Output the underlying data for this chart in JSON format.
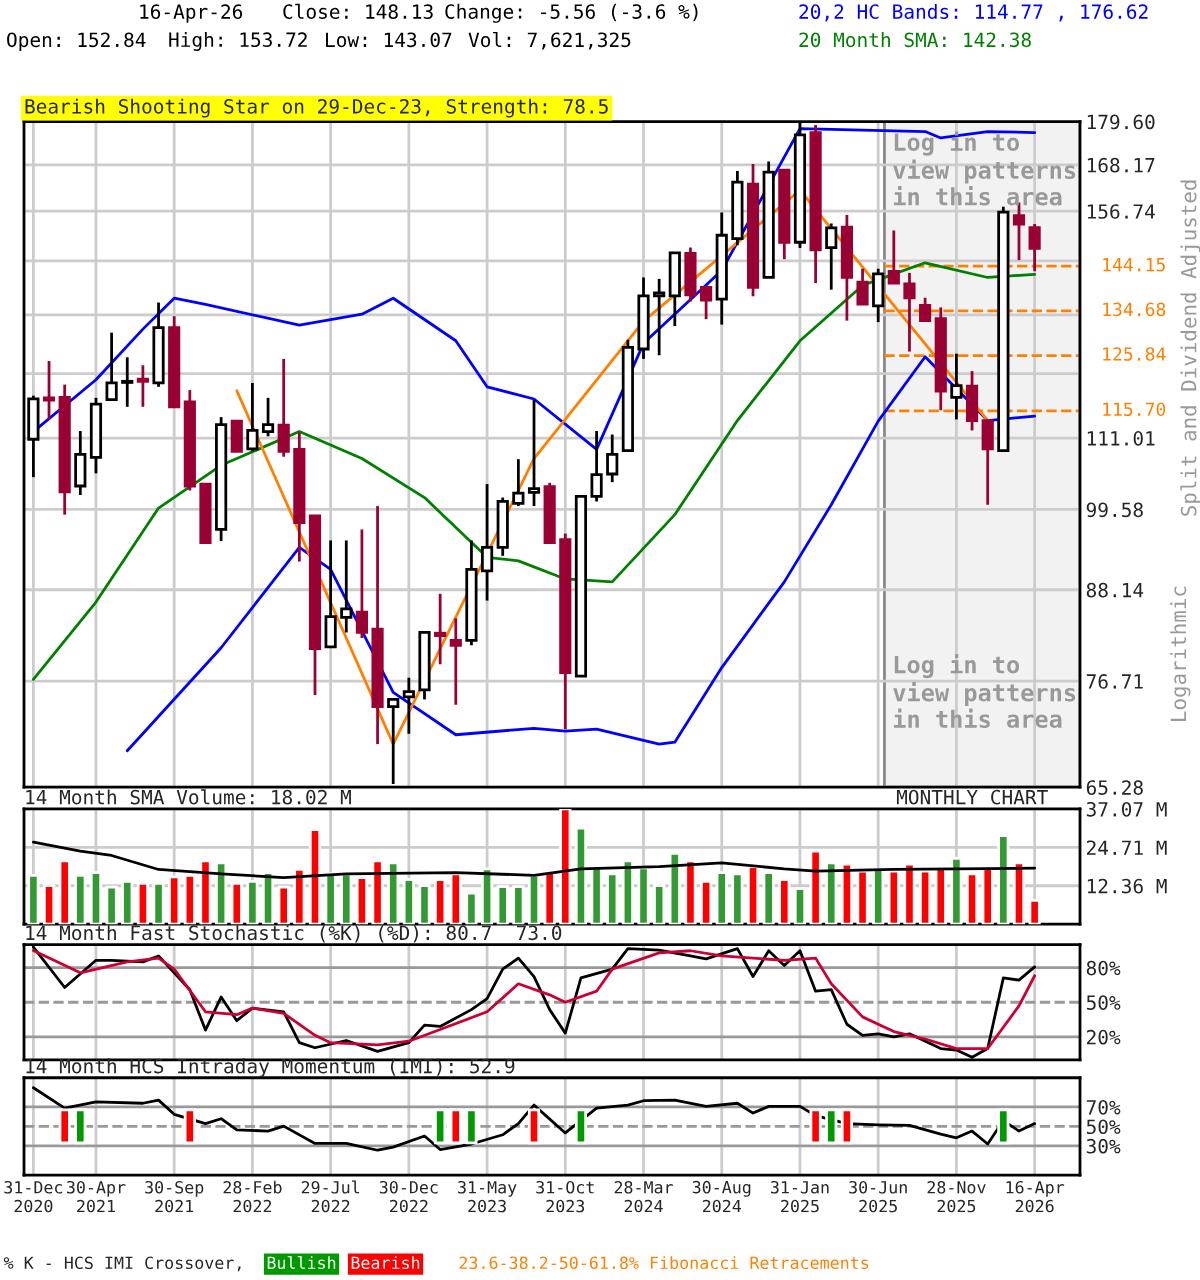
{
  "chart_data": [
    {
      "type": "candlestick",
      "title": "Bearish Shooting Star on 29-Dec-23, Strength: 78.5",
      "ylabel": "Split and Dividend Adjusted",
      "x": [
        "2020-12",
        "2021-01",
        "2021-02",
        "2021-03",
        "2021-04",
        "2021-05",
        "2021-06",
        "2021-07",
        "2021-08",
        "2021-09",
        "2021-10",
        "2021-11",
        "2021-12",
        "2022-01",
        "2022-02",
        "2022-03",
        "2022-04",
        "2022-05",
        "2022-06",
        "2022-07",
        "2022-08",
        "2022-09",
        "2022-10",
        "2022-11",
        "2022-12",
        "2023-01",
        "2023-02",
        "2023-03",
        "2023-04",
        "2023-05",
        "2023-06",
        "2023-07",
        "2023-08",
        "2023-09",
        "2023-10",
        "2023-11",
        "2023-12",
        "2024-01",
        "2024-02",
        "2024-03",
        "2024-04",
        "2024-05",
        "2024-06",
        "2024-07",
        "2024-08",
        "2024-09",
        "2024-10",
        "2024-11",
        "2024-12",
        "2025-01",
        "2025-02",
        "2025-03",
        "2025-04",
        "2025-05",
        "2025-06",
        "2025-07",
        "2025-08",
        "2025-09",
        "2025-10",
        "2025-11",
        "2025-12",
        "2026-01",
        "2026-02",
        "2026-03",
        "2026-04"
      ],
      "ohlc": [
        [
          110.8,
          118.4,
          104.6,
          117.8
        ],
        [
          118.0,
          124.8,
          114.2,
          117.6
        ],
        [
          118.1,
          120.4,
          98.8,
          102.3
        ],
        [
          103.2,
          112.2,
          101.8,
          108.3
        ],
        [
          107.8,
          118.0,
          105.2,
          116.9
        ],
        [
          117.7,
          130.3,
          117.7,
          120.7
        ],
        [
          120.8,
          125.5,
          116.4,
          121.0
        ],
        [
          121.4,
          124.0,
          116.4,
          121.0
        ],
        [
          120.7,
          136.4,
          120.0,
          131.3
        ],
        [
          131.3,
          133.6,
          116.4,
          116.4
        ],
        [
          117.3,
          119.4,
          102.5,
          103.2
        ],
        [
          103.5,
          103.5,
          94.5,
          94.7
        ],
        [
          96.6,
          114.6,
          94.9,
          113.3
        ],
        [
          113.9,
          113.9,
          108.8,
          108.8
        ],
        [
          109.2,
          120.7,
          108.8,
          112.3
        ],
        [
          112.1,
          118.0,
          111.3,
          113.3
        ],
        [
          113.2,
          125.2,
          107.9,
          108.8
        ],
        [
          109.1,
          111.9,
          92.0,
          97.6
        ],
        [
          98.6,
          98.6,
          75.1,
          80.6
        ],
        [
          80.8,
          95.0,
          80.8,
          84.6
        ],
        [
          84.5,
          95.0,
          82.6,
          85.6
        ],
        [
          85.2,
          96.6,
          81.9,
          82.6
        ],
        [
          83.0,
          100.1,
          69.7,
          73.8
        ],
        [
          73.8,
          74.6,
          65.6,
          74.6
        ],
        [
          74.9,
          77.1,
          70.8,
          75.5
        ],
        [
          75.7,
          82.6,
          74.6,
          82.6
        ],
        [
          82.5,
          87.6,
          78.7,
          82.2
        ],
        [
          81.6,
          84.4,
          74.0,
          81.0
        ],
        [
          81.6,
          95.0,
          81.0,
          90.9
        ],
        [
          90.7,
          103.5,
          86.7,
          94.0
        ],
        [
          94.0,
          101.4,
          92.8,
          100.8
        ],
        [
          100.5,
          107.5,
          100.1,
          102.1
        ],
        [
          102.2,
          117.6,
          100.1,
          102.8
        ],
        [
          103.1,
          103.7,
          94.5,
          94.7
        ],
        [
          95.1,
          96.0,
          71.3,
          77.7
        ],
        [
          77.3,
          101.6,
          77.3,
          101.6
        ],
        [
          101.6,
          112.2,
          100.8,
          105.0
        ],
        [
          105.1,
          111.6,
          103.8,
          108.3
        ],
        [
          108.9,
          128.9,
          108.9,
          127.4
        ],
        [
          127.1,
          141.7,
          125.2,
          137.8
        ],
        [
          137.8,
          141.4,
          125.9,
          138.4
        ],
        [
          137.8,
          147.1,
          131.6,
          147.1
        ],
        [
          147.0,
          148.3,
          136.6,
          138.0
        ],
        [
          139.6,
          139.6,
          133.0,
          136.9
        ],
        [
          137.1,
          156.4,
          131.9,
          151.1
        ],
        [
          150.3,
          166.6,
          148.8,
          163.8
        ],
        [
          163.3,
          168.4,
          137.7,
          139.6
        ],
        [
          141.7,
          169.0,
          141.7,
          166.3
        ],
        [
          166.8,
          166.8,
          145.7,
          149.5
        ],
        [
          149.5,
          179.5,
          148.2,
          176.0
        ],
        [
          176.6,
          178.7,
          140.5,
          147.8
        ],
        [
          148.3,
          153.8,
          139.1,
          152.8
        ],
        [
          153.0,
          155.8,
          132.7,
          141.7
        ],
        [
          140.7,
          143.6,
          136.1,
          136.1
        ],
        [
          135.7,
          143.6,
          132.4,
          142.5
        ],
        [
          143.0,
          152.2,
          140.5,
          140.5
        ],
        [
          140.3,
          142.7,
          126.6,
          137.4
        ],
        [
          135.8,
          137.4,
          132.7,
          132.7
        ],
        [
          133.1,
          135.4,
          115.8,
          119.2
        ],
        [
          118.1,
          126.2,
          114.2,
          120.2
        ],
        [
          120.1,
          122.9,
          112.3,
          114.0
        ],
        [
          114.0,
          114.0,
          100.3,
          109.2
        ],
        [
          108.9,
          157.8,
          108.9,
          156.5
        ],
        [
          155.7,
          158.8,
          145.5,
          153.69
        ],
        [
          152.84,
          153.72,
          143.07,
          148.13
        ]
      ],
      "colors": [
        "#ffffff",
        "#990033",
        "#990033",
        "#ffffff",
        "#ffffff",
        "#ffffff",
        "#ffffff",
        "#990033",
        "#ffffff",
        "#990033",
        "#990033",
        "#990033",
        "#ffffff",
        "#990033",
        "#ffffff",
        "#ffffff",
        "#990033",
        "#990033",
        "#990033",
        "#ffffff",
        "#ffffff",
        "#990033",
        "#990033",
        "#ffffff",
        "#ffffff",
        "#ffffff",
        "#990033",
        "#990033",
        "#ffffff",
        "#ffffff",
        "#ffffff",
        "#ffffff",
        "#ffffff",
        "#990033",
        "#990033",
        "#ffffff",
        "#ffffff",
        "#ffffff",
        "#ffffff",
        "#ffffff",
        "#ffffff",
        "#ffffff",
        "#990033",
        "#990033",
        "#ffffff",
        "#ffffff",
        "#990033",
        "#ffffff",
        "#990033",
        "#ffffff",
        "#990033",
        "#ffffff",
        "#990033",
        "#990033",
        "#ffffff",
        "#990033",
        "#990033",
        "#990033",
        "#990033",
        "#ffffff",
        "#990033",
        "#990033",
        "#ffffff",
        "#990033",
        "#990033"
      ],
      "series": [
        {
          "type": "line",
          "color": "#0000ff",
          "x": [
            "2020-12",
            "2021-04",
            "2021-07",
            "2021-09",
            "2021-11",
            "2022-05",
            "2022-09",
            "2022-11",
            "2023-03",
            "2023-05",
            "2023-08",
            "2023-12",
            "2024-03",
            "2024-08",
            "2025-01",
            "2025-09",
            "2025-10",
            "2026-01",
            "2026-04"
          ],
          "values": [
            112.1,
            121.3,
            131.0,
            137.3,
            136.0,
            131.8,
            134.0,
            137.3,
            128.7,
            120.0,
            117.8,
            109.1,
            128.2,
            143.2,
            177.7,
            176.9,
            175.2,
            176.9,
            176.62
          ]
        },
        {
          "type": "line",
          "color": "#0000ff",
          "x": [
            "2021-06",
            "2021-12",
            "2022-05",
            "2022-07",
            "2022-11",
            "2023-03",
            "2023-08",
            "2023-10",
            "2023-12",
            "2024-04",
            "2024-05",
            "2024-08",
            "2024-12",
            "2025-03",
            "2025-06",
            "2025-09",
            "2025-10",
            "2026-01",
            "2026-04"
          ],
          "values": [
            69.0,
            80.7,
            94.0,
            90.9,
            75.4,
            70.7,
            71.4,
            71.1,
            71.3,
            69.7,
            69.9,
            78.3,
            89.2,
            100.3,
            113.9,
            125.6,
            122.6,
            114.0,
            114.77
          ]
        },
        {
          "type": "line",
          "color": "#008000",
          "x": [
            "2020-12",
            "2021-04",
            "2021-08",
            "2021-12",
            "2022-05",
            "2022-09",
            "2023-01",
            "2023-05",
            "2023-07",
            "2023-10",
            "2024-01",
            "2024-05",
            "2024-09",
            "2025-01",
            "2025-05",
            "2025-09",
            "2026-01",
            "2026-04"
          ],
          "values": [
            76.9,
            86.5,
            99.8,
            106.5,
            112.1,
            107.6,
            101.4,
            92.6,
            92.1,
            89.6,
            89.2,
            98.8,
            114.0,
            128.7,
            140.0,
            144.9,
            141.7,
            142.38
          ]
        },
        {
          "type": "line",
          "color": "#ff8000",
          "x": [
            "2022-01",
            "2022-11",
            "2023-08",
            "2024-03",
            "2025-01",
            "2026-01"
          ],
          "values": [
            119.3,
            69.7,
            107.6,
            132.6,
            161.8,
            114.0
          ]
        }
      ],
      "log": true,
      "ylim": [
        65.28,
        179.6
      ],
      "yticks": [
        65.28,
        76.71,
        88.14,
        99.58,
        111.01,
        {
          "value": 122.44,
          "label": null
        },
        {
          "value": 133.87,
          "label": null
        },
        {
          "value": 145.31,
          "label": null
        },
        156.74,
        168.17,
        {
          "value": 179.6,
          "label": "179.60"
        }
      ],
      "xlim": [
        "2020-11-13",
        "2026-06-28"
      ],
      "xticks": [
        {
          "value": "2020-12",
          "label": null
        },
        {
          "value": "2021-04",
          "label": null
        },
        {
          "value": "2021-09",
          "label": null
        },
        {
          "value": "2022-02",
          "label": null
        },
        {
          "value": "2022-07",
          "label": null
        },
        {
          "value": "2022-12",
          "label": null
        },
        {
          "value": "2023-05",
          "label": null
        },
        {
          "value": "2023-10",
          "label": null
        },
        {
          "value": "2024-03",
          "label": null
        },
        {
          "value": "2024-08",
          "label": null
        },
        {
          "value": "2025-01",
          "label": null
        },
        {
          "value": "2025-06",
          "label": null
        },
        {
          "value": "2025-11",
          "label": null
        },
        {
          "value": "2026-04",
          "label": null
        }
      ],
      "grid": true,
      "tick_labels": "y",
      "ref_lines": [
        {
          "axis": "y",
          "value": 144.15,
          "label": "144.15",
          "color": "#ff8000",
          "line_style": "dashed"
        },
        {
          "axis": "y",
          "value": 134.68,
          "label": "134.68",
          "color": "#ff8000",
          "line_style": "dashed"
        },
        {
          "axis": "y",
          "value": 125.84,
          "label": "125.84",
          "color": "#ff8000",
          "line_style": "dashed"
        },
        {
          "axis": "y",
          "value": 115.7,
          "label": "115.70",
          "color": "#ff8000",
          "line_style": "dashed"
        }
      ],
      "bands": [
        {
          "axis": "x",
          "from": "2025-06-13",
          "to": "2026-06-28",
          "label": "Log in to\nview patterns\nin this area",
          "color": "#f2f2f2"
        }
      ],
      "annotations": [
        "16-Apr-26",
        "Close: 148.13",
        "Change: -5.56 (-3.6 %)",
        "Open: 152.84",
        "High: 153.72",
        "Low: 143.07",
        "Vol: 7,621,325",
        "20,2 HC Bands: 114.77 , 176.62",
        "20 Month SMA: 142.38",
        "Log in to\nview patterns\nin this area",
        "Logarithmic"
      ]
    },
    {
      "type": "bar",
      "title": "14 Month SMA Volume: 18.02 M",
      "series": [
        {
          "x": [
            "2020-12",
            "2021-01",
            "2021-02",
            "2021-03",
            "2021-04",
            "2021-05",
            "2021-06",
            "2021-07",
            "2021-08",
            "2021-09",
            "2021-10",
            "2021-11",
            "2021-12",
            "2022-01",
            "2022-02",
            "2022-03",
            "2022-04",
            "2022-05",
            "2022-06",
            "2022-07",
            "2022-08",
            "2022-09",
            "2022-10",
            "2022-11",
            "2022-12",
            "2023-01",
            "2023-02",
            "2023-03",
            "2023-04",
            "2023-05",
            "2023-06",
            "2023-07",
            "2023-08",
            "2023-09",
            "2023-10",
            "2023-11",
            "2023-12",
            "2024-01",
            "2024-02",
            "2024-03",
            "2024-04",
            "2024-05",
            "2024-06",
            "2024-07",
            "2024-08",
            "2024-09",
            "2024-10",
            "2024-11",
            "2024-12",
            "2025-01",
            "2025-02",
            "2025-03",
            "2025-04",
            "2025-05",
            "2025-06",
            "2025-07",
            "2025-08",
            "2025-09",
            "2025-10",
            "2025-11",
            "2025-12",
            "2026-01",
            "2026-02",
            "2026-03",
            "2026-04"
          ],
          "values": [
            15.7,
            12.4,
            20.4,
            15.7,
            16.6,
            11.9,
            13.8,
            13.1,
            13.1,
            15.2,
            15.7,
            20.4,
            19.7,
            13.1,
            13.8,
            16.6,
            11.9,
            17.6,
            30.4,
            16.2,
            16.2,
            15.0,
            20.4,
            19.7,
            14.3,
            12.4,
            14.3,
            16.2,
            10.0,
            17.8,
            12.1,
            12.1,
            15.7,
            16.6,
            37.07,
            30.9,
            18.5,
            16.2,
            20.4,
            18.1,
            12.4,
            22.8,
            20.4,
            13.8,
            16.6,
            16.2,
            18.5,
            16.6,
            14.3,
            11.4,
            23.5,
            19.7,
            19.3,
            17.1,
            17.6,
            17.1,
            19.3,
            17.1,
            18.1,
            21.2,
            16.2,
            18.5,
            28.5,
            19.7,
            7.62
          ],
          "colors": [
            "#339933",
            "#ff0000",
            "#ff0000",
            "#339933",
            "#339933",
            "#339933",
            "#339933",
            "#ff0000",
            "#339933",
            "#ff0000",
            "#ff0000",
            "#ff0000",
            "#339933",
            "#ff0000",
            "#339933",
            "#339933",
            "#ff0000",
            "#ff0000",
            "#ff0000",
            "#339933",
            "#339933",
            "#ff0000",
            "#ff0000",
            "#339933",
            "#339933",
            "#339933",
            "#ff0000",
            "#ff0000",
            "#339933",
            "#339933",
            "#339933",
            "#339933",
            "#339933",
            "#ff0000",
            "#ff0000",
            "#339933",
            "#339933",
            "#339933",
            "#339933",
            "#339933",
            "#339933",
            "#339933",
            "#ff0000",
            "#ff0000",
            "#339933",
            "#339933",
            "#ff0000",
            "#339933",
            "#ff0000",
            "#339933",
            "#ff0000",
            "#339933",
            "#ff0000",
            "#ff0000",
            "#339933",
            "#ff0000",
            "#ff0000",
            "#ff0000",
            "#ff0000",
            "#339933",
            "#ff0000",
            "#ff0000",
            "#339933",
            "#ff0000",
            "#ff0000"
          ]
        },
        {
          "type": "line",
          "color": "#000000",
          "x": [
            "2020-12",
            "2021-03",
            "2021-05",
            "2021-08",
            "2021-12",
            "2022-04",
            "2022-08",
            "2023-03",
            "2023-08",
            "2023-11",
            "2024-04",
            "2024-08",
            "2024-12",
            "2025-02",
            "2025-07",
            "2026-04"
          ],
          "values": [
            26.4,
            23.5,
            22.1,
            17.6,
            16.2,
            15.0,
            16.2,
            16.6,
            15.7,
            17.8,
            18.5,
            19.7,
            17.8,
            17.1,
            17.6,
            18.02
          ]
        }
      ],
      "ylim": [
        0,
        37.07
      ],
      "yticks": [
        {
          "value": 12.36,
          "label": "12.36 M"
        },
        {
          "value": 24.71,
          "label": "24.71 M"
        },
        {
          "value": 37.07,
          "label": "37.07 M"
        }
      ],
      "xlim": [
        "2020-11-13",
        "2026-06-28"
      ],
      "xticks": [
        {
          "value": "2020-12",
          "label": null
        },
        {
          "value": "2021-04",
          "label": null
        },
        {
          "value": "2021-09",
          "label": null
        },
        {
          "value": "2022-02",
          "label": null
        },
        {
          "value": "2022-07",
          "label": null
        },
        {
          "value": "2022-12",
          "label": null
        },
        {
          "value": "2023-05",
          "label": null
        },
        {
          "value": "2023-10",
          "label": null
        },
        {
          "value": "2024-03",
          "label": null
        },
        {
          "value": "2024-08",
          "label": null
        },
        {
          "value": "2025-01",
          "label": null
        },
        {
          "value": "2025-06",
          "label": null
        },
        {
          "value": "2025-11",
          "label": null
        },
        {
          "value": "2026-04",
          "label": null
        }
      ],
      "grid": true,
      "tick_labels": "y",
      "annotations": [
        "MONTHLY CHART"
      ]
    },
    {
      "type": "line",
      "title": "14 Month Fast Stochastic (%K) (%D): 80.7  73.0",
      "series": [
        {
          "color": "#000000",
          "x": [
            "2020-12",
            "2021-02",
            "2021-04",
            "2021-05",
            "2021-07",
            "2021-08",
            "2021-10",
            "2021-11",
            "2021-12",
            "2022-01",
            "2022-02",
            "2022-04",
            "2022-05",
            "2022-06",
            "2022-08",
            "2022-10",
            "2022-12",
            "2023-01",
            "2023-02",
            "2023-04",
            "2023-05",
            "2023-06",
            "2023-07",
            "2023-08",
            "2023-09",
            "2023-10",
            "2023-11",
            "2024-01",
            "2024-02",
            "2024-04",
            "2024-06",
            "2024-07",
            "2024-09",
            "2024-10",
            "2024-11",
            "2024-12",
            "2025-01",
            "2025-02",
            "2025-03",
            "2025-04",
            "2025-05",
            "2025-06",
            "2025-07",
            "2025-08",
            "2025-10",
            "2025-11",
            "2025-12",
            "2026-01",
            "2026-02",
            "2026-03",
            "2026-04"
          ],
          "values": [
            97.9,
            62.8,
            86.4,
            86.4,
            85.0,
            90.2,
            60.9,
            25.8,
            54.5,
            34.0,
            44.9,
            41.7,
            14.9,
            10.5,
            16.8,
            7.3,
            14.9,
            30.2,
            29.0,
            43.6,
            53.2,
            78.7,
            88.3,
            72.3,
            43.6,
            23.2,
            71.1,
            78.7,
            96.6,
            95.3,
            90.2,
            87.7,
            96.6,
            72.3,
            94.7,
            81.9,
            94.7,
            59.6,
            60.9,
            30.9,
            21.3,
            22.6,
            20.0,
            22.6,
            9.8,
            8.5,
            2.2,
            9.8,
            71.1,
            69.2,
            80.7
          ]
        },
        {
          "color": "#cc0033",
          "x": [
            "2020-12",
            "2021-03",
            "2021-06",
            "2021-08",
            "2021-09",
            "2021-11",
            "2022-01",
            "2022-02",
            "2022-04",
            "2022-06",
            "2022-07",
            "2022-10",
            "2022-12",
            "2023-02",
            "2023-05",
            "2023-07",
            "2023-09",
            "2023-10",
            "2023-12",
            "2024-01",
            "2024-04",
            "2024-06",
            "2024-08",
            "2024-10",
            "2024-12",
            "2025-02",
            "2025-03",
            "2025-05",
            "2025-07",
            "2025-09",
            "2025-11",
            "2026-01",
            "2026-03",
            "2026-04"
          ],
          "values": [
            95.0,
            75.5,
            85.0,
            88.3,
            78.7,
            41.7,
            39.2,
            44.9,
            40.4,
            21.3,
            14.9,
            13.0,
            16.2,
            26.4,
            41.7,
            66.0,
            56.4,
            50.0,
            59.6,
            78.7,
            92.8,
            94.7,
            90.2,
            88.3,
            86.4,
            88.3,
            66.0,
            37.3,
            24.5,
            18.1,
            9.8,
            9.8,
            46.8,
            73.0
          ]
        }
      ],
      "ylim": [
        0,
        100
      ],
      "yticks": [
        {
          "value": 20,
          "label": "20%"
        },
        {
          "value": 50,
          "label": "50%"
        },
        {
          "value": 80,
          "label": "80%"
        }
      ],
      "xlim": [
        "2020-11-13",
        "2026-06-28"
      ],
      "xticks": [
        {
          "value": "2020-12",
          "label": null
        },
        {
          "value": "2021-04",
          "label": null
        },
        {
          "value": "2021-09",
          "label": null
        },
        {
          "value": "2022-02",
          "label": null
        },
        {
          "value": "2022-07",
          "label": null
        },
        {
          "value": "2022-12",
          "label": null
        },
        {
          "value": "2023-05",
          "label": null
        },
        {
          "value": "2023-10",
          "label": null
        },
        {
          "value": "2024-03",
          "label": null
        },
        {
          "value": "2024-08",
          "label": null
        },
        {
          "value": "2025-01",
          "label": null
        },
        {
          "value": "2025-06",
          "label": null
        },
        {
          "value": "2025-11",
          "label": null
        },
        {
          "value": "2026-04",
          "label": null
        }
      ],
      "grid": "x",
      "tick_labels": "y",
      "ref_lines": [
        {
          "axis": "y",
          "value": 20,
          "color": "#999999",
          "line_style": "solid"
        },
        {
          "axis": "y",
          "value": 50,
          "color": "#999999",
          "line_style": "dashed"
        },
        {
          "axis": "y",
          "value": 80,
          "color": "#999999",
          "line_style": "solid"
        }
      ]
    },
    {
      "type": "line",
      "title": "14 Month HCS Intraday Momentum (IMI): 52.9",
      "series": [
        {
          "color": "#000000",
          "x": [
            "2020-12",
            "2021-02",
            "2021-04",
            "2021-07",
            "2021-08",
            "2021-09",
            "2021-11",
            "2021-12",
            "2022-01",
            "2022-03",
            "2022-04",
            "2022-06",
            "2022-08",
            "2022-10",
            "2022-11",
            "2023-01",
            "2023-02",
            "2023-04",
            "2023-06",
            "2023-07",
            "2023-08",
            "2023-10",
            "2023-12",
            "2024-02",
            "2024-03",
            "2024-05",
            "2024-07",
            "2024-09",
            "2024-10",
            "2024-11",
            "2025-01",
            "2025-02",
            "2025-04",
            "2025-06",
            "2025-08",
            "2025-10",
            "2025-11",
            "2025-12",
            "2026-01",
            "2026-02",
            "2026-03",
            "2026-04"
          ],
          "values": [
            89.7,
            68.7,
            75.1,
            73.8,
            77.0,
            62.4,
            52.9,
            57.9,
            46.5,
            45.2,
            50.3,
            32.5,
            32.5,
            25.5,
            28.7,
            40.2,
            26.2,
            31.9,
            41.4,
            52.9,
            71.9,
            43.3,
            68.7,
            71.9,
            76.4,
            77.0,
            70.6,
            73.8,
            63.7,
            70.6,
            70.6,
            61.1,
            52.9,
            51.6,
            51.0,
            42.1,
            38.3,
            45.2,
            31.9,
            56.0,
            45.2,
            52.9
          ]
        },
        {
          "type": "bar",
          "name": "Bullish",
          "color": "#009900",
          "x": [
            "2021-03",
            "2023-02",
            "2023-04",
            "2023-11",
            "2025-03",
            "2026-02"
          ],
          "values": [
            34,
            34,
            34,
            34,
            34,
            34
          ],
          "base": [
            33,
            33,
            33,
            33,
            33,
            33
          ]
        },
        {
          "type": "bar",
          "name": "Bearish",
          "color": "#ff0000",
          "x": [
            "2021-02",
            "2021-10",
            "2023-03",
            "2023-08",
            "2025-02",
            "2025-04"
          ],
          "values": [
            34,
            34,
            34,
            34,
            34,
            34
          ],
          "base": [
            33,
            33,
            33,
            33,
            33,
            33
          ]
        }
      ],
      "ylim": [
        0,
        100
      ],
      "yticks": [
        {
          "value": 30,
          "label": "30%"
        },
        {
          "value": 50,
          "label": "50%"
        },
        {
          "value": 70,
          "label": "70%"
        }
      ],
      "xlim": [
        "2020-11-13",
        "2026-06-28"
      ],
      "xticks": [
        {
          "value": "2020-12",
          "label": "31-Dec\n2020"
        },
        {
          "value": "2021-04",
          "label": "30-Apr\n2021"
        },
        {
          "value": "2021-09",
          "label": "30-Sep\n2021"
        },
        {
          "value": "2022-02",
          "label": "28-Feb\n2022"
        },
        {
          "value": "2022-07",
          "label": "29-Jul\n2022"
        },
        {
          "value": "2022-12",
          "label": "30-Dec\n2022"
        },
        {
          "value": "2023-05",
          "label": "31-May\n2023"
        },
        {
          "value": "2023-10",
          "label": "31-Oct\n2023"
        },
        {
          "value": "2024-03",
          "label": "28-Mar\n2024"
        },
        {
          "value": "2024-08",
          "label": "30-Aug\n2024"
        },
        {
          "value": "2025-01",
          "label": "31-Jan\n2025"
        },
        {
          "value": "2025-06",
          "label": "30-Jun\n2025"
        },
        {
          "value": "2025-11",
          "label": "28-Nov\n2025"
        },
        {
          "value": "2026-04",
          "label": "16-Apr\n2026"
        }
      ],
      "grid": "x",
      "legend": "bottom",
      "ref_lines": [
        {
          "axis": "y",
          "value": 30,
          "color": "#999999",
          "line_style": "solid"
        },
        {
          "axis": "y",
          "value": 50,
          "color": "#999999",
          "line_style": "dashed"
        },
        {
          "axis": "y",
          "value": 70,
          "color": "#999999",
          "line_style": "solid"
        }
      ],
      "annotations": [
        "% K - HCS IMI Crossover,",
        "23.6-38.2-50-61.8% Fibonacci Retracements"
      ]
    }
  ]
}
